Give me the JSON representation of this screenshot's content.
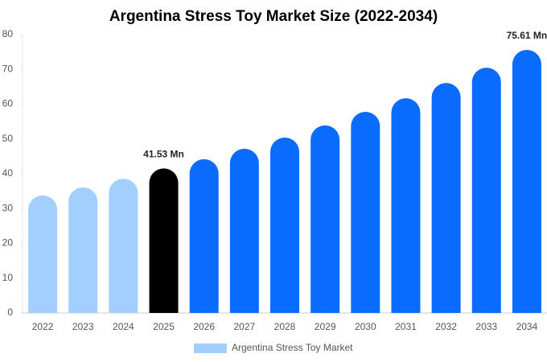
{
  "chart_data": {
    "type": "bar",
    "title": "Argentina Stress Toy Market Size (2022-2034)",
    "categories": [
      "2022",
      "2023",
      "2024",
      "2025",
      "2026",
      "2027",
      "2028",
      "2029",
      "2030",
      "2031",
      "2032",
      "2033",
      "2034"
    ],
    "series": [
      {
        "name": "Argentina Stress Toy Market",
        "color": "#a3cfff",
        "colors": [
          "#a3cfff",
          "#a3cfff",
          "#a3cfff",
          "#000000",
          "#0a6cff",
          "#0a6cff",
          "#0a6cff",
          "#0a6cff",
          "#0a6cff",
          "#0a6cff",
          "#0a6cff",
          "#0a6cff",
          "#0a6cff"
        ],
        "values": [
          33.8,
          36.1,
          38.6,
          41.53,
          44.2,
          47.2,
          50.4,
          53.9,
          57.8,
          61.7,
          66.1,
          70.5,
          75.61
        ],
        "value_labels": [
          null,
          null,
          null,
          "41.53 Mn",
          null,
          null,
          null,
          null,
          null,
          null,
          null,
          null,
          "75.61 Mn"
        ]
      }
    ],
    "ylim": [
      0,
      80
    ],
    "yticks": [
      0,
      10,
      20,
      30,
      40,
      50,
      60,
      70,
      80
    ],
    "grid": false,
    "legend": "bottom"
  }
}
